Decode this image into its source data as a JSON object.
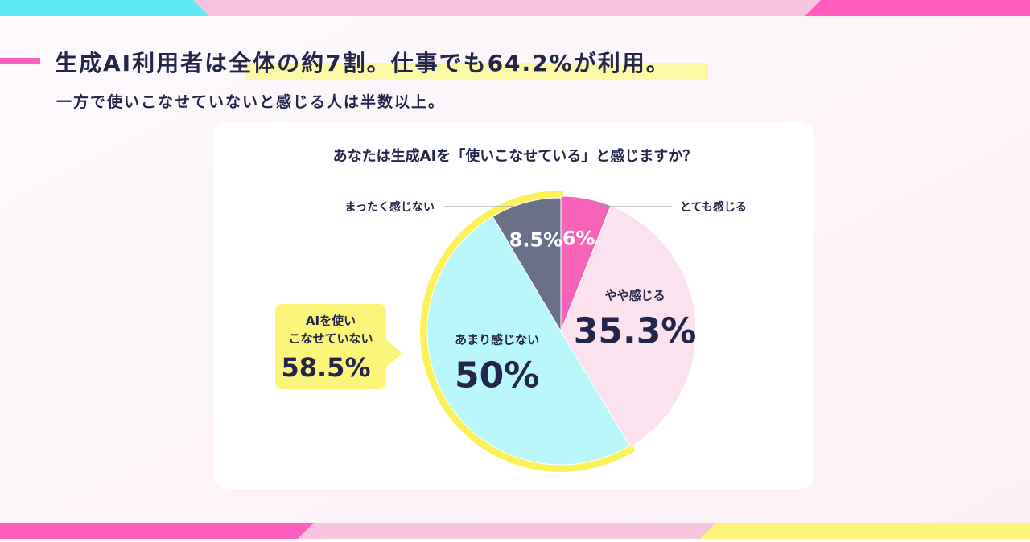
{
  "headline": "生成AI利用者は全体の約7割。仕事でも64.2%が利用。",
  "subheadline": "一方で使いこなせていないと感じる人は半数以上。",
  "chart_data": {
    "type": "pie",
    "title": "あなたは生成AIを「使いこなせている」と感じますか？",
    "categories": [
      "とても感じる",
      "やや感じる",
      "あまり感じない",
      "まったく感じない"
    ],
    "values": [
      6,
      35.3,
      50,
      8.5
    ],
    "value_labels": [
      "6%",
      "35.3%",
      "50%",
      "8.5%"
    ],
    "colors": [
      "#f763b8",
      "#fae3ef",
      "#baf7fa",
      "#6b7089"
    ],
    "callout": {
      "text": "AIを使い\nこなせていない",
      "value": 58.5,
      "value_label": "58.5%"
    }
  }
}
